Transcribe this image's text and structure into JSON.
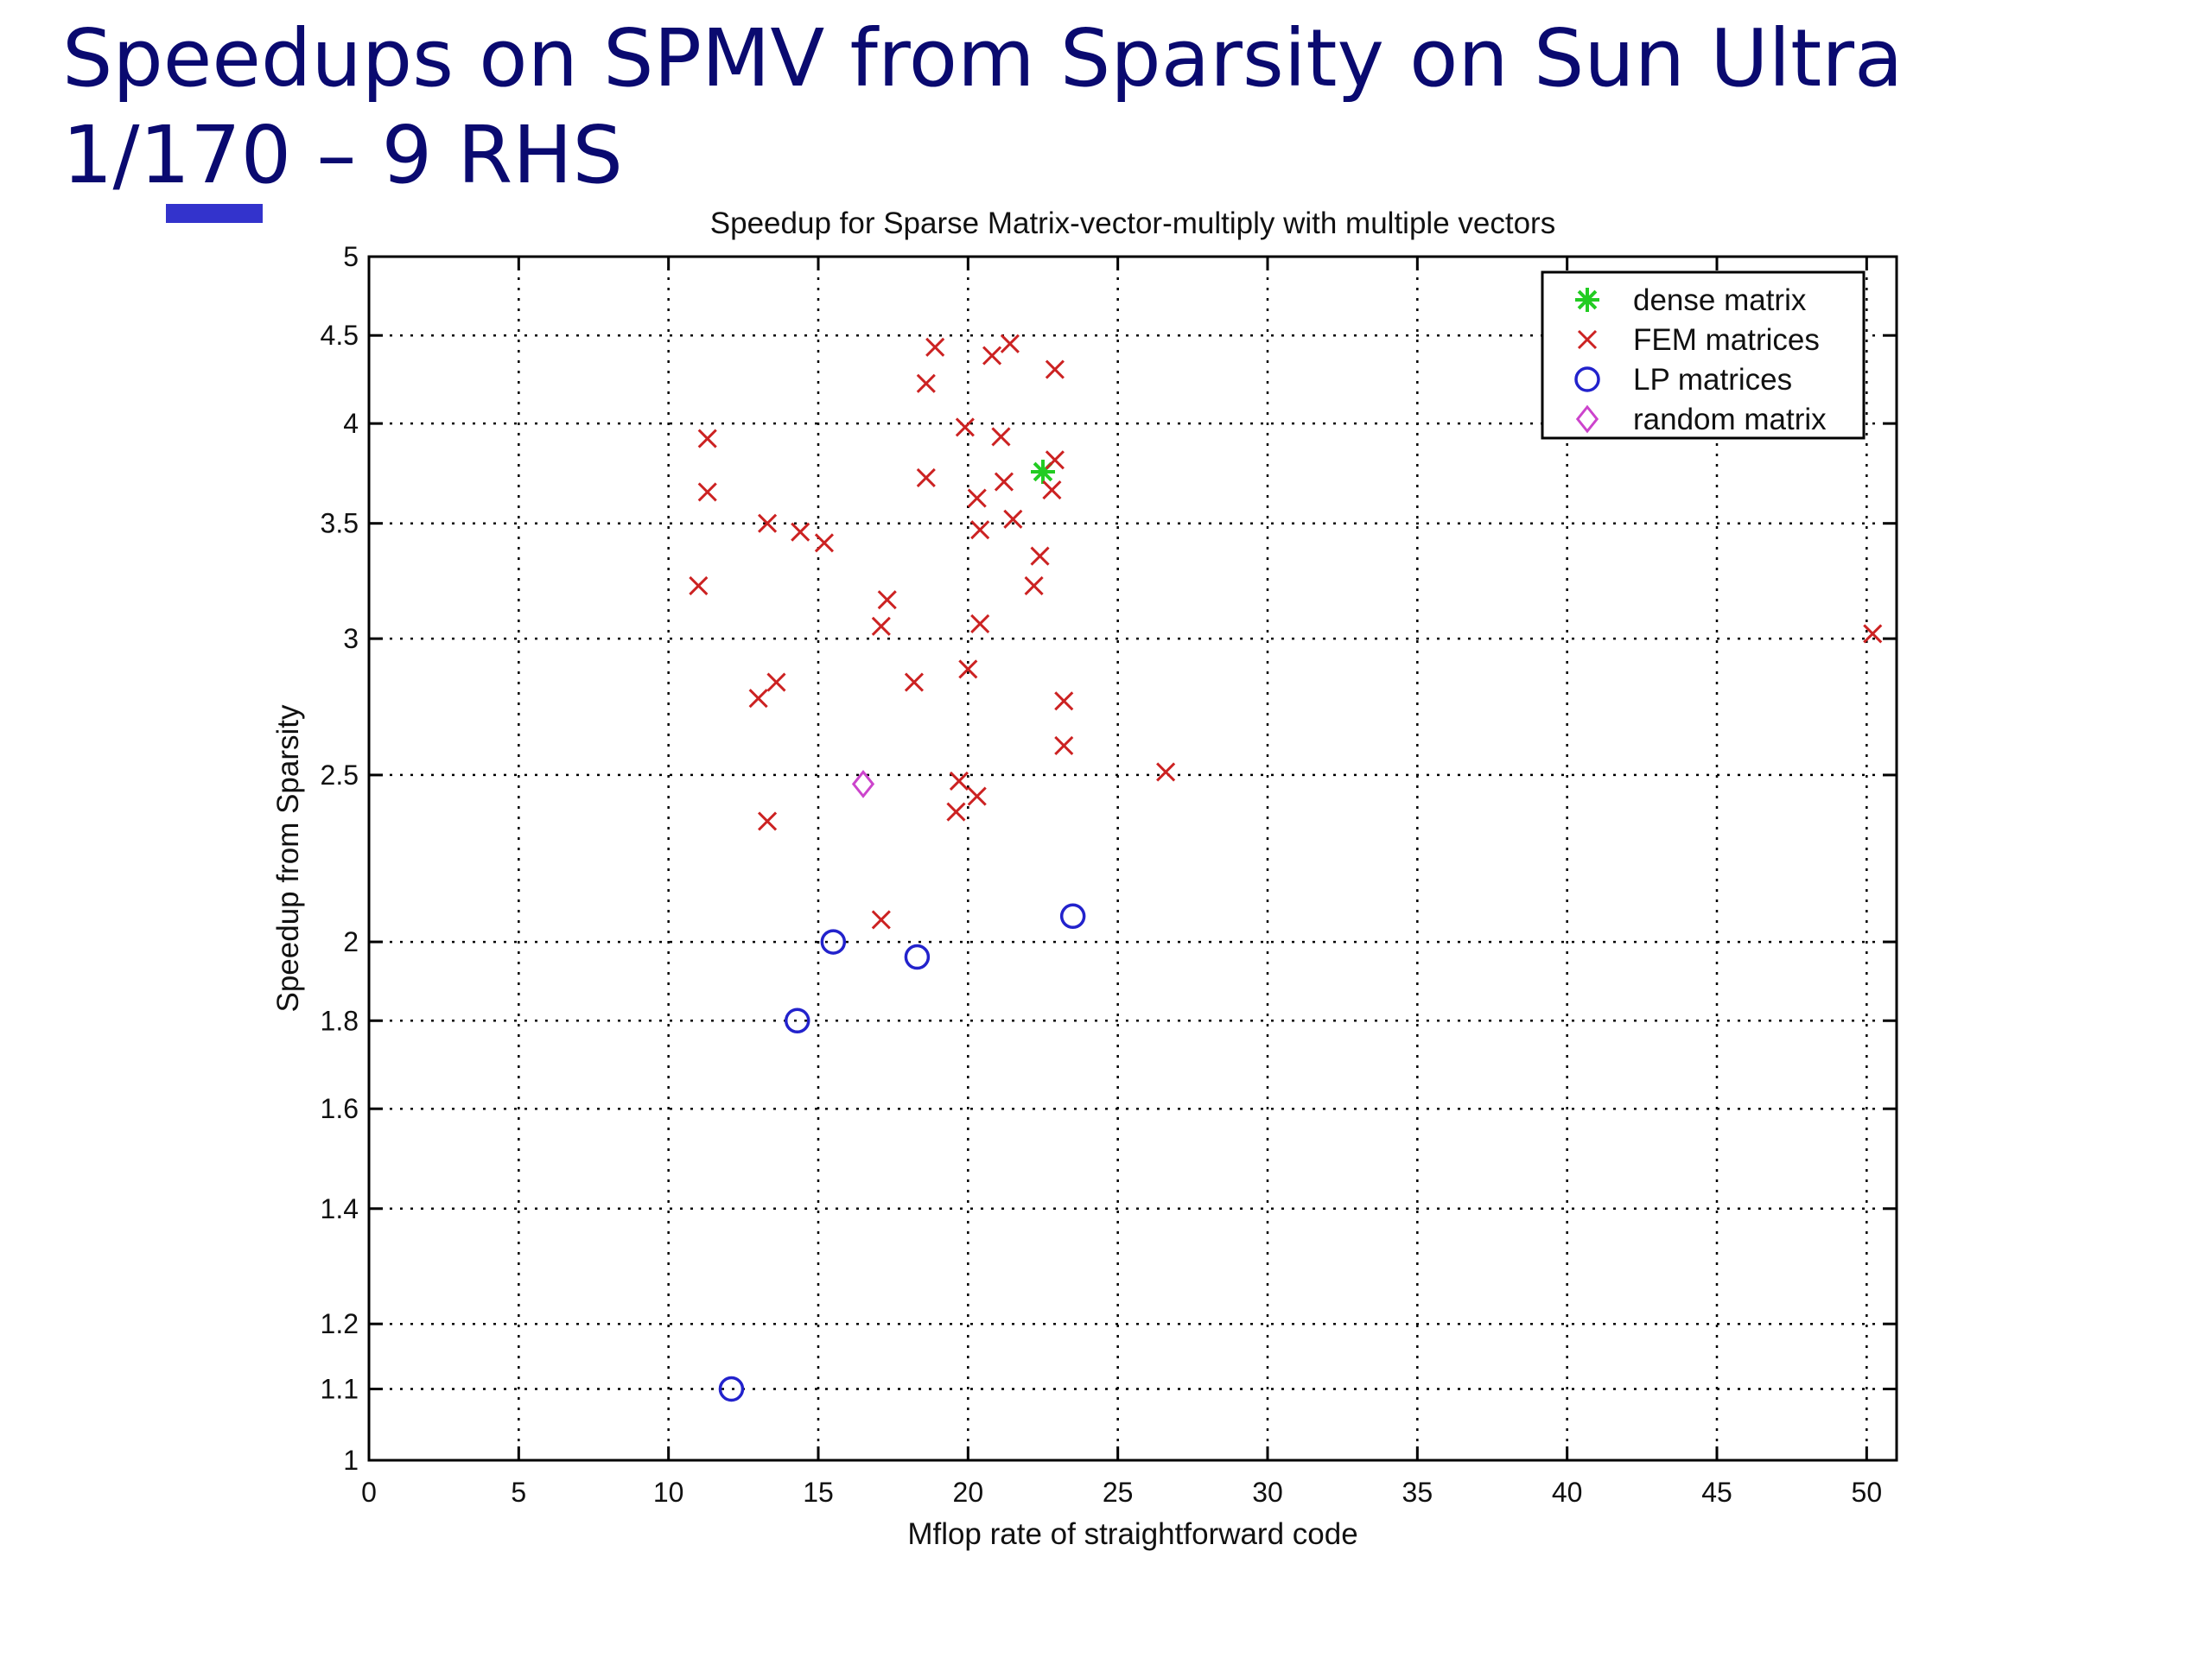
{
  "slide": {
    "title": "Speedups on SPMV from Sparsity on Sun Ultra 1/170 – 9 RHS"
  },
  "chart_data": {
    "type": "scatter",
    "title": "Speedup for Sparse Matrix-vector-multiply with multiple vectors",
    "xlabel": "Mflop rate of straightforward code",
    "ylabel": "Speedup from Sparsity",
    "xlim": [
      0,
      51
    ],
    "ylim": [
      1,
      5
    ],
    "yscale": "log",
    "xticks": [
      0,
      5,
      10,
      15,
      20,
      25,
      30,
      35,
      40,
      45,
      50
    ],
    "yticks": [
      1,
      1.1,
      1.2,
      1.4,
      1.6,
      1.8,
      2,
      2.5,
      3,
      3.5,
      4,
      4.5,
      5
    ],
    "xtick_labels": [
      "0",
      "5",
      "10",
      "15",
      "20",
      "25",
      "30",
      "35",
      "40",
      "45",
      "50"
    ],
    "ytick_labels": [
      "1",
      "1.1",
      "1.2",
      "1.4",
      "1.6",
      "1.8",
      "2",
      "2.5",
      "3",
      "3.5",
      "4",
      "4.5",
      "5"
    ],
    "grid": true,
    "legend_position": "top-right",
    "series": [
      {
        "name": "dense matrix",
        "marker": "star",
        "color": "#22cc22",
        "points": [
          [
            22.5,
            3.75
          ]
        ]
      },
      {
        "name": "FEM matrices",
        "marker": "x",
        "color": "#cc2222",
        "points": [
          [
            18.9,
            4.43
          ],
          [
            20.8,
            4.38
          ],
          [
            21.4,
            4.45
          ],
          [
            22.9,
            4.3
          ],
          [
            18.6,
            4.22
          ],
          [
            19.9,
            3.98
          ],
          [
            21.1,
            3.93
          ],
          [
            11.3,
            3.92
          ],
          [
            22.9,
            3.81
          ],
          [
            18.6,
            3.72
          ],
          [
            21.2,
            3.7
          ],
          [
            22.8,
            3.66
          ],
          [
            11.3,
            3.65
          ],
          [
            20.3,
            3.62
          ],
          [
            13.3,
            3.5
          ],
          [
            21.5,
            3.52
          ],
          [
            20.4,
            3.47
          ],
          [
            14.4,
            3.46
          ],
          [
            15.2,
            3.41
          ],
          [
            22.4,
            3.35
          ],
          [
            11.0,
            3.22
          ],
          [
            22.2,
            3.22
          ],
          [
            17.3,
            3.16
          ],
          [
            17.1,
            3.05
          ],
          [
            20.4,
            3.06
          ],
          [
            50.2,
            3.02
          ],
          [
            20.0,
            2.88
          ],
          [
            18.2,
            2.83
          ],
          [
            13.6,
            2.83
          ],
          [
            13.0,
            2.77
          ],
          [
            23.2,
            2.76
          ],
          [
            23.2,
            2.6
          ],
          [
            26.6,
            2.51
          ],
          [
            19.7,
            2.48
          ],
          [
            20.3,
            2.43
          ],
          [
            19.6,
            2.38
          ],
          [
            13.3,
            2.35
          ],
          [
            17.1,
            2.06
          ]
        ]
      },
      {
        "name": "LP matrices",
        "marker": "circle",
        "color": "#2222cc",
        "points": [
          [
            23.5,
            2.07
          ],
          [
            15.5,
            2.0
          ],
          [
            18.3,
            1.96
          ],
          [
            14.3,
            1.8
          ],
          [
            12.1,
            1.1
          ]
        ]
      },
      {
        "name": "random matrix",
        "marker": "diamond",
        "color": "#cc44cc",
        "points": [
          [
            16.5,
            2.47
          ]
        ]
      }
    ]
  }
}
